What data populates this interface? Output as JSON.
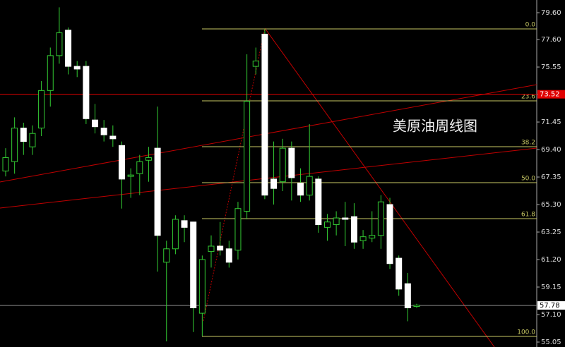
{
  "chart_data": {
    "type": "candlestick",
    "title": "美原油周线图",
    "ylim": [
      55.05,
      79.6
    ],
    "yticks": [
      {
        "value": 79.6,
        "label": "79.60"
      },
      {
        "value": 77.6,
        "label": "77.60"
      },
      75.55,
      {
        "value": 73.5,
        "label": "73.50"
      },
      71.45,
      {
        "value": 69.4,
        "label": "69.40"
      },
      67.35,
      {
        "value": 65.3,
        "label": "65.30"
      },
      63.25,
      {
        "value": 61.2,
        "label": "61.20"
      },
      59.15,
      {
        "value": 57.1,
        "label": "57.10"
      },
      55.05
    ],
    "open": [
      67.8,
      68.5,
      71.0,
      69.6,
      71.0,
      73.8,
      76.4,
      78.3,
      75.6,
      75.6,
      71.6,
      71.0,
      70.4,
      69.7,
      67.4,
      67.6,
      68.6,
      69.5,
      61.0,
      62.0,
      64.1,
      64.0,
      57.2,
      61.8,
      62.2,
      62.0,
      61.9,
      64.8,
      75.6,
      78.0,
      67.2,
      67.0,
      69.5,
      66.9,
      66.0,
      67.2,
      63.6,
      63.8,
      64.3,
      64.4,
      62.6,
      62.8,
      63.0,
      65.3,
      61.3,
      59.4,
      57.7
    ],
    "high": [
      69.5,
      71.8,
      71.4,
      71.2,
      74.5,
      77.0,
      80.0,
      78.5,
      76.0,
      76.0,
      72.8,
      71.6,
      71.2,
      70.0,
      68.0,
      69.0,
      69.6,
      72.6,
      62.6,
      64.5,
      64.5,
      64.0,
      61.5,
      63.0,
      64.0,
      62.6,
      65.5,
      76.5,
      77.0,
      78.4,
      70.0,
      70.2,
      70.0,
      68.0,
      71.3,
      67.4,
      64.6,
      64.8,
      65.5,
      65.4,
      63.4,
      64.8,
      66.0,
      65.8,
      61.5,
      60.2,
      57.9
    ],
    "low": [
      67.4,
      67.6,
      69.0,
      69.0,
      70.4,
      72.6,
      75.8,
      75.0,
      74.8,
      71.3,
      70.6,
      70.0,
      69.6,
      65.0,
      65.8,
      66.0,
      67.0,
      60.3,
      55.1,
      61.6,
      62.5,
      55.8,
      55.5,
      60.6,
      61.5,
      60.6,
      61.2,
      64.2,
      75.0,
      65.7,
      65.3,
      66.3,
      65.6,
      65.5,
      65.6,
      63.2,
      62.6,
      63.0,
      62.2,
      62.0,
      62.0,
      62.5,
      62.0,
      60.5,
      58.5,
      56.6,
      57.6
    ],
    "close": [
      68.8,
      71.0,
      70.0,
      70.6,
      73.8,
      76.4,
      78.1,
      75.6,
      75.4,
      71.7,
      71.1,
      70.5,
      70.2,
      67.2,
      67.5,
      68.5,
      68.8,
      63.0,
      62.0,
      64.2,
      63.6,
      57.6,
      61.2,
      62.2,
      61.9,
      61.0,
      65.0,
      73.0,
      76.0,
      66.0,
      66.5,
      69.5,
      67.3,
      66.0,
      67.4,
      63.8,
      64.0,
      64.3,
      64.2,
      62.5,
      62.9,
      63.0,
      65.5,
      60.9,
      59.0,
      57.6,
      57.8
    ],
    "fib_levels": [
      {
        "label": "0.0",
        "price": 78.39
      },
      {
        "label": "23.6",
        "price": 73.03
      },
      {
        "label": "38.2",
        "price": 69.61
      },
      {
        "label": "50.0",
        "price": 66.93
      },
      {
        "label": "61.8",
        "price": 64.25
      },
      {
        "label": "100.0",
        "price": 55.47
      }
    ],
    "current_price": 57.78,
    "resistance_price": 73.52
  }
}
